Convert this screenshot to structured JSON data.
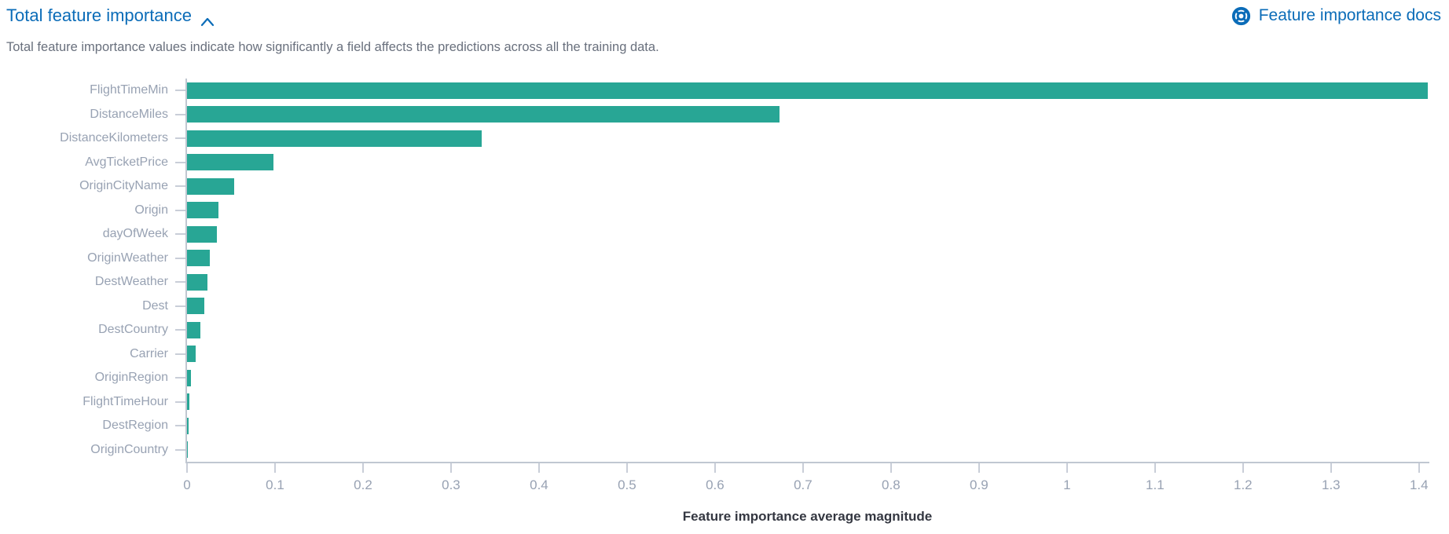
{
  "accordion": {
    "title": "Total feature importance",
    "state": "expanded",
    "chevron_icon": "chevron-up"
  },
  "docs_link": {
    "label": "Feature importance docs",
    "icon": "lifebuoy-help-icon"
  },
  "description": "Total feature importance values indicate how significantly a field affects the predictions across all the training data.",
  "colors": {
    "bar": "#28a695",
    "link_blue": "#0b6cb8",
    "axis_line": "#c0c7d1",
    "tick_label": "#98a2b3",
    "description_text": "#69707d",
    "axis_title_text": "#343741"
  },
  "chart_data": {
    "type": "bar",
    "orientation": "horizontal",
    "title": "",
    "xlabel": "Feature importance average magnitude",
    "ylabel": "",
    "categories": [
      "FlightTimeMin",
      "DistanceMiles",
      "DistanceKilometers",
      "AvgTicketPrice",
      "OriginCityName",
      "Origin",
      "dayOfWeek",
      "OriginWeather",
      "DestWeather",
      "Dest",
      "DestCountry",
      "Carrier",
      "OriginRegion",
      "FlightTimeHour",
      "DestRegion",
      "OriginCountry"
    ],
    "values": [
      1.41,
      0.673,
      0.335,
      0.098,
      0.054,
      0.036,
      0.034,
      0.026,
      0.023,
      0.02,
      0.015,
      0.01,
      0.0045,
      0.003,
      0.002,
      0.001
    ],
    "xlim": [
      0,
      1.41
    ],
    "xticks": [
      0,
      0.1,
      0.2,
      0.3,
      0.4,
      0.5,
      0.6,
      0.7,
      0.8,
      0.9,
      1,
      1.1,
      1.2,
      1.3,
      1.4
    ],
    "xtick_labels": [
      "0",
      "0.1",
      "0.2",
      "0.3",
      "0.4",
      "0.5",
      "0.6",
      "0.7",
      "0.8",
      "0.9",
      "1",
      "1.1",
      "1.2",
      "1.3",
      "1.4"
    ],
    "grid": false,
    "legend": false
  }
}
